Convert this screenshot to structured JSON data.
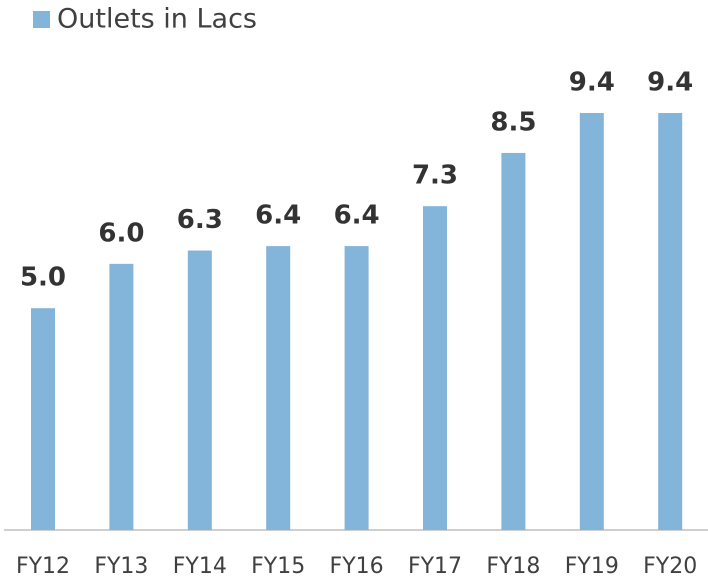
{
  "chart_data": {
    "type": "bar",
    "categories": [
      "FY12",
      "FY13",
      "FY14",
      "FY15",
      "FY16",
      "FY17",
      "FY18",
      "FY19",
      "FY20"
    ],
    "series": [
      {
        "name": "Outlets in Lacs",
        "color": "#83b4d9",
        "values": [
          5.0,
          6.0,
          6.3,
          6.4,
          6.4,
          7.3,
          8.5,
          9.4,
          9.4
        ],
        "value_labels": [
          "5.0",
          "6.0",
          "6.3",
          "6.4",
          "6.4",
          "7.3",
          "8.5",
          "9.4",
          "9.4"
        ]
      }
    ],
    "ylim": [
      0,
      10
    ],
    "legend": "top-left"
  }
}
